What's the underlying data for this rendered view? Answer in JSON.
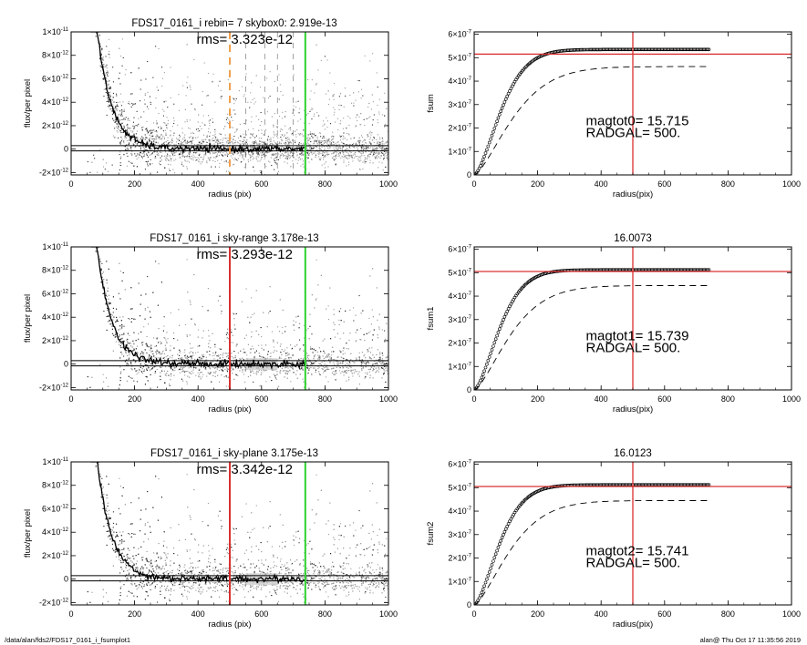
{
  "footer": {
    "left": "/data/alan/fds2/FDS17_0161_i_fsumplot1",
    "right": "alan@  Thu Oct 17 11:35:56 2019"
  },
  "colors": {
    "background": "#ffffff",
    "scatter": "#9a9a9a",
    "scatter_dark": "#2a2a2a",
    "profile": "#000000",
    "red_line": "#d93030",
    "green_line": "#2ed22e",
    "orange_dash": "#f0a050"
  },
  "chart_data": [
    {
      "type": "scatter",
      "title": "FDS17_0161_i rebin= 7    skybox0:  2.919e-13",
      "annotation": "rms= 3.323e-12",
      "xlabel": "radius (pix)",
      "ylabel": "flux/per pixel",
      "xlim": [
        0,
        1000
      ],
      "ylim": [
        -2.2e-12,
        1e-11
      ],
      "xticks": [
        "0",
        "200",
        "400",
        "600",
        "800",
        "1000"
      ],
      "yticks": [
        {
          "value": 1e-11,
          "label": "1×10",
          "exp": "-11"
        },
        {
          "value": 8e-12,
          "label": "8×10",
          "exp": "-12"
        },
        {
          "value": 6e-12,
          "label": "6×10",
          "exp": "-12"
        },
        {
          "value": 4e-12,
          "label": "4×10",
          "exp": "-12"
        },
        {
          "value": 2e-12,
          "label": "2×10",
          "exp": "-12"
        },
        {
          "value": 0,
          "label": "0",
          "exp": ""
        },
        {
          "value": -2e-12,
          "label": "-2×10",
          "exp": "-12"
        }
      ],
      "hlines": [
        3e-13,
        -1.5e-13
      ],
      "vlines": [
        {
          "x": 500,
          "color": "#f0a050",
          "style": "dashed"
        },
        {
          "x": 738,
          "color": "#2ed22e",
          "style": "solid"
        }
      ],
      "sky_dashes": [
        550,
        610,
        650,
        700
      ],
      "profile_model": {
        "amplitude": 1.05e-11,
        "r0": 80,
        "scale": 46,
        "floor": 2e-14,
        "r_end": 738
      }
    },
    {
      "type": "line",
      "title": "",
      "xlabel": "radius(pix)",
      "ylabel": "fsum",
      "xlim": [
        0,
        1000
      ],
      "ylim": [
        0,
        6.1e-07
      ],
      "xticks": [
        "0",
        "200",
        "400",
        "600",
        "800",
        "1000"
      ],
      "yticks": [
        {
          "value": 6e-07,
          "label": "6×10",
          "exp": "-7"
        },
        {
          "value": 5e-07,
          "label": "5×10",
          "exp": "-7"
        },
        {
          "value": 4e-07,
          "label": "4×10",
          "exp": "-7"
        },
        {
          "value": 3e-07,
          "label": "3×10",
          "exp": "-7"
        },
        {
          "value": 2e-07,
          "label": "2×10",
          "exp": "-7"
        },
        {
          "value": 1e-07,
          "label": "1×10",
          "exp": "-7"
        },
        {
          "value": 0,
          "label": "0",
          "exp": ""
        }
      ],
      "hline": 5.15e-07,
      "vline": 500,
      "magtot_label": "magtot0=  15.715",
      "radgal_label": "RADGAL=    500.",
      "curve": {
        "final": 5.35e-07,
        "slope_after": 0.0,
        "r_end": 740,
        "scale": 105
      },
      "dashed": {
        "final": 4.62e-07,
        "scale": 150
      }
    },
    {
      "type": "scatter",
      "title": "FDS17_0161_i sky-range  3.178e-13",
      "annotation": "rms= 3.293e-12",
      "xlabel": "radius (pix)",
      "ylabel": "flux/per pixel",
      "xlim": [
        0,
        1000
      ],
      "ylim": [
        -2.2e-12,
        1e-11
      ],
      "xticks": [
        "0",
        "200",
        "400",
        "600",
        "800",
        "1000"
      ],
      "yticks": [
        {
          "value": 1e-11,
          "label": "1×10",
          "exp": "-11"
        },
        {
          "value": 8e-12,
          "label": "8×10",
          "exp": "-12"
        },
        {
          "value": 6e-12,
          "label": "6×10",
          "exp": "-12"
        },
        {
          "value": 4e-12,
          "label": "4×10",
          "exp": "-12"
        },
        {
          "value": 2e-12,
          "label": "2×10",
          "exp": "-12"
        },
        {
          "value": 0,
          "label": "0",
          "exp": ""
        },
        {
          "value": -2e-12,
          "label": "-2×10",
          "exp": "-12"
        }
      ],
      "hlines": [
        3e-13,
        -1.5e-13
      ],
      "vlines": [
        {
          "x": 500,
          "color": "#d93030",
          "style": "solid"
        },
        {
          "x": 738,
          "color": "#2ed22e",
          "style": "solid"
        }
      ],
      "band": [
        550,
        650
      ],
      "profile_model": {
        "amplitude": 1.05e-11,
        "r0": 80,
        "scale": 46,
        "floor": 2e-14,
        "r_end": 738
      }
    },
    {
      "type": "line",
      "title": "16.0073",
      "xlabel": "radius(pix)",
      "ylabel": "fsum1",
      "xlim": [
        0,
        1000
      ],
      "ylim": [
        0,
        6.1e-07
      ],
      "xticks": [
        "0",
        "200",
        "400",
        "600",
        "800",
        "1000"
      ],
      "yticks": [
        {
          "value": 6e-07,
          "label": "6×10",
          "exp": "-7"
        },
        {
          "value": 5e-07,
          "label": "5×10",
          "exp": "-7"
        },
        {
          "value": 4e-07,
          "label": "4×10",
          "exp": "-7"
        },
        {
          "value": 3e-07,
          "label": "3×10",
          "exp": "-7"
        },
        {
          "value": 2e-07,
          "label": "2×10",
          "exp": "-7"
        },
        {
          "value": 1e-07,
          "label": "1×10",
          "exp": "-7"
        },
        {
          "value": 0,
          "label": "0",
          "exp": ""
        }
      ],
      "hline": 5.05e-07,
      "vline": 500,
      "magtot_label": "magtot1=  15.739",
      "radgal_label": "RADGAL=    500.",
      "curve": {
        "final": 5.12e-07,
        "r_end": 740,
        "scale": 100
      },
      "dashed": {
        "final": 4.45e-07,
        "scale": 140
      }
    },
    {
      "type": "scatter",
      "title": "FDS17_0161_i sky-plane  3.175e-13",
      "annotation": "rms= 3.342e-12",
      "xlabel": "radius (pix)",
      "ylabel": "flux/per pixel",
      "xlim": [
        0,
        1000
      ],
      "ylim": [
        -2.2e-12,
        1e-11
      ],
      "xticks": [
        "0",
        "200",
        "400",
        "600",
        "800",
        "1000"
      ],
      "yticks": [
        {
          "value": 1e-11,
          "label": "1×10",
          "exp": "-11"
        },
        {
          "value": 8e-12,
          "label": "8×10",
          "exp": "-12"
        },
        {
          "value": 6e-12,
          "label": "6×10",
          "exp": "-12"
        },
        {
          "value": 4e-12,
          "label": "4×10",
          "exp": "-12"
        },
        {
          "value": 2e-12,
          "label": "2×10",
          "exp": "-12"
        },
        {
          "value": 0,
          "label": "0",
          "exp": ""
        },
        {
          "value": -2e-12,
          "label": "-2×10",
          "exp": "-12"
        }
      ],
      "hlines": [
        3e-13,
        -1.5e-13
      ],
      "vlines": [
        {
          "x": 500,
          "color": "#d93030",
          "style": "solid"
        },
        {
          "x": 738,
          "color": "#2ed22e",
          "style": "solid"
        }
      ],
      "band": [
        550,
        650
      ],
      "profile_model": {
        "amplitude": 1.05e-11,
        "r0": 80,
        "scale": 46,
        "floor": 2e-14,
        "r_end": 738
      }
    },
    {
      "type": "line",
      "title": "16.0123",
      "xlabel": "radius(pix)",
      "ylabel": "fsum2",
      "xlim": [
        0,
        1000
      ],
      "ylim": [
        0,
        6.1e-07
      ],
      "xticks": [
        "0",
        "200",
        "400",
        "600",
        "800",
        "1000"
      ],
      "yticks": [
        {
          "value": 6e-07,
          "label": "6×10",
          "exp": "-7"
        },
        {
          "value": 5e-07,
          "label": "5×10",
          "exp": "-7"
        },
        {
          "value": 4e-07,
          "label": "4×10",
          "exp": "-7"
        },
        {
          "value": 3e-07,
          "label": "3×10",
          "exp": "-7"
        },
        {
          "value": 2e-07,
          "label": "2×10",
          "exp": "-7"
        },
        {
          "value": 1e-07,
          "label": "1×10",
          "exp": "-7"
        },
        {
          "value": 0,
          "label": "0",
          "exp": ""
        }
      ],
      "hline": 5.05e-07,
      "vline": 500,
      "magtot_label": "magtot2=  15.741",
      "radgal_label": "RADGAL=    500.",
      "curve": {
        "final": 5.12e-07,
        "r_end": 740,
        "scale": 100
      },
      "dashed": {
        "final": 4.45e-07,
        "scale": 140
      }
    }
  ]
}
